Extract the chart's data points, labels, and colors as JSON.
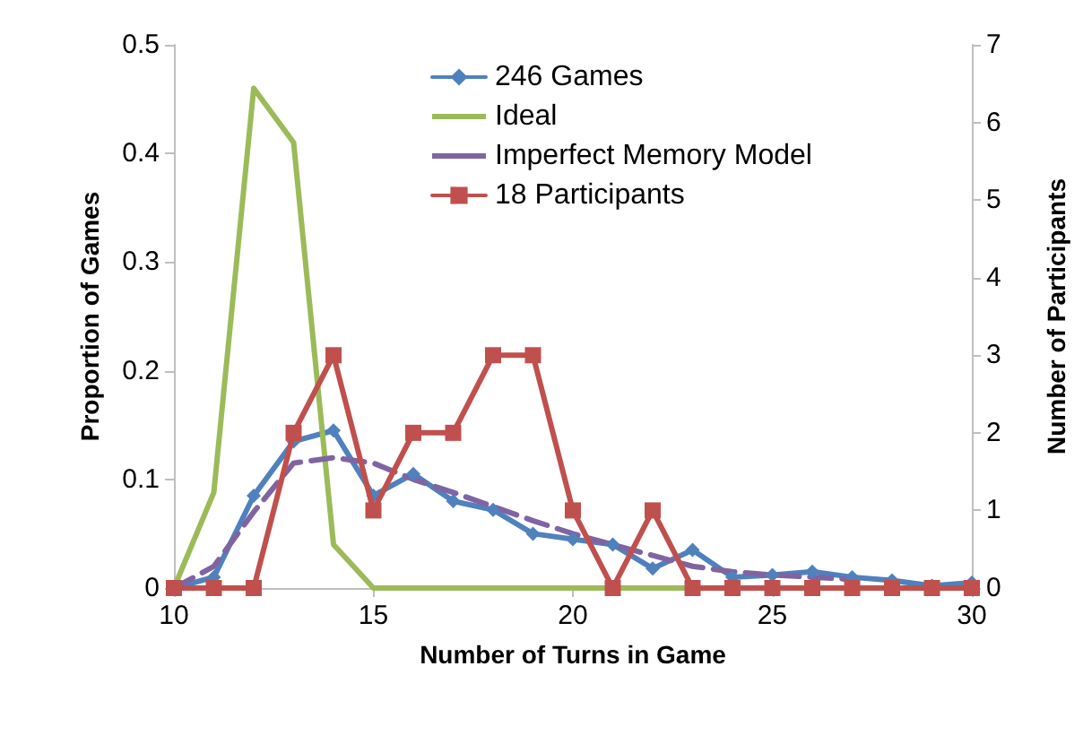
{
  "chart_data": {
    "type": "line",
    "xlabel": "Number of Turns in Game",
    "ylabel": "Proportion of Games",
    "y2label": "Number of Participants",
    "x": [
      10,
      11,
      12,
      13,
      14,
      15,
      16,
      17,
      18,
      19,
      20,
      21,
      22,
      23,
      24,
      25,
      26,
      27,
      28,
      29,
      30
    ],
    "xlim": [
      10,
      30
    ],
    "xticks": [
      10,
      15,
      20,
      25,
      30
    ],
    "ylim": [
      0,
      0.5
    ],
    "yticks": [
      0,
      0.1,
      0.2,
      0.3,
      0.4,
      0.5
    ],
    "y2lim": [
      0,
      7
    ],
    "y2ticks": [
      0,
      1,
      2,
      3,
      4,
      5,
      6,
      7
    ],
    "grid": false,
    "legend": "top",
    "series": [
      {
        "name": "246 Games",
        "color": "#4f81bd",
        "marker": "diamond",
        "values": [
          0,
          0.01,
          0.085,
          0.135,
          0.145,
          0.085,
          0.105,
          0.08,
          0.072,
          0.05,
          0.045,
          0.04,
          0.018,
          0.035,
          0.01,
          0.012,
          0.015,
          0.01,
          0.007,
          0.002,
          0.005
        ]
      },
      {
        "name": "Ideal",
        "color": "#9bbb59",
        "marker": "none",
        "values": [
          0,
          0.088,
          0.46,
          0.41,
          0.04,
          0,
          0,
          0,
          0,
          0,
          0,
          0,
          0,
          0,
          0,
          null,
          null,
          null,
          null,
          null,
          null
        ]
      },
      {
        "name": "Imperfect Memory Model",
        "color": "#8064a2",
        "marker": "none",
        "line_style": "dashed",
        "values": [
          0,
          0.02,
          0.07,
          0.115,
          0.12,
          0.115,
          0.1,
          0.088,
          0.075,
          0.062,
          0.05,
          0.04,
          0.03,
          0.02,
          0.015,
          0.012,
          0.01,
          0.008,
          null,
          null,
          null
        ]
      },
      {
        "name": "18 Participants",
        "color": "#c0504d",
        "marker": "square",
        "axis": "y2",
        "values": [
          0,
          0,
          0,
          2,
          3,
          1,
          2,
          2,
          3,
          3,
          1,
          0,
          1,
          0,
          0,
          0,
          0,
          0,
          0,
          0,
          0
        ]
      }
    ]
  }
}
